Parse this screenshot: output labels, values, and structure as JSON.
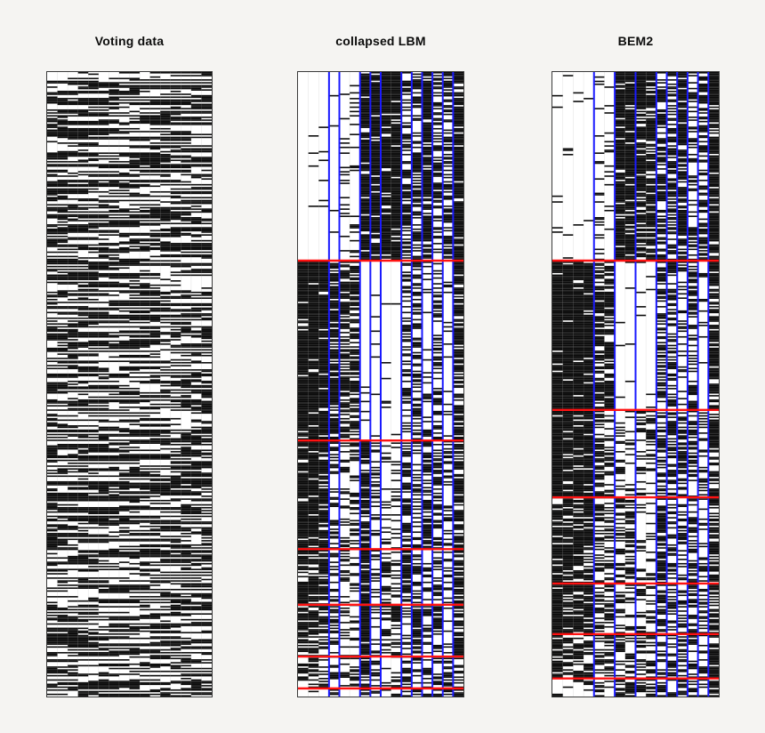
{
  "figure": {
    "background_color": "#f5f4f2",
    "matrix_background": "#ffffff",
    "cell_on_color": "#0a0a0a",
    "row_separator_color": "#ff1212",
    "column_separator_color": "#1a1aff",
    "border_color": "#3a3a3a"
  },
  "chart_data": [
    {
      "id": "voting",
      "type": "heatmap",
      "title": "Voting data",
      "rows": 435,
      "cols": 16,
      "encoding": "binary black/white cells",
      "black_probability": 0.54,
      "run_stay_probability": 0.62,
      "seed": 20240817,
      "grid": "faint column gridlines",
      "legend_position": "none"
    },
    {
      "id": "clbm",
      "type": "block-heatmap",
      "title": "collapsed LBM",
      "rows": 435,
      "cols": 16,
      "encoding": "binary cells sorted into row x column clusters",
      "col_cluster_boundaries": [
        3,
        4,
        6,
        7,
        8,
        10,
        11,
        12,
        13,
        14,
        15
      ],
      "row_cluster_boundaries_frac": [
        0.302,
        0.59,
        0.764,
        0.853,
        0.936,
        0.987
      ],
      "row_line_color": "#ff1212",
      "col_line_color": "#1a1aff",
      "block_black_probability": [
        [
          0.03,
          0.04,
          0.1,
          0.9,
          0.85,
          0.88,
          0.6,
          0.55,
          0.78,
          0.45,
          0.6,
          0.9
        ],
        [
          0.93,
          0.78,
          0.68,
          0.06,
          0.04,
          0.03,
          0.5,
          0.5,
          0.22,
          0.48,
          0.1,
          0.72
        ],
        [
          0.9,
          0.5,
          0.35,
          0.8,
          0.3,
          0.28,
          0.6,
          0.45,
          0.6,
          0.5,
          0.3,
          0.7
        ],
        [
          0.78,
          0.45,
          0.3,
          0.85,
          0.25,
          0.35,
          0.7,
          0.45,
          0.3,
          0.55,
          0.25,
          0.75
        ],
        [
          0.72,
          0.5,
          0.35,
          0.8,
          0.25,
          0.55,
          0.3,
          0.7,
          0.35,
          0.55,
          0.2,
          0.75
        ],
        [
          0.6,
          0.5,
          0.45,
          0.7,
          0.4,
          0.35,
          0.55,
          0.45,
          0.5,
          0.45,
          0.4,
          0.65
        ],
        [
          0.1,
          0.3,
          0.4,
          0.8,
          0.5,
          0.3,
          0.6,
          0.5,
          0.4,
          0.5,
          0.4,
          0.7
        ]
      ],
      "seed": 91451,
      "legend_position": "none"
    },
    {
      "id": "bem2",
      "type": "block-heatmap",
      "title": "BEM2",
      "rows": 435,
      "cols": 16,
      "encoding": "binary cells sorted into row x column clusters",
      "col_cluster_boundaries": [
        4,
        6,
        8,
        10,
        11,
        12,
        13,
        14,
        15
      ],
      "row_cluster_boundaries_frac": [
        0.302,
        0.541,
        0.681,
        0.819,
        0.9,
        0.971
      ],
      "row_line_color": "#ff1212",
      "col_line_color": "#1a1aff",
      "block_black_probability": [
        [
          0.03,
          0.12,
          0.88,
          0.8,
          0.6,
          0.55,
          0.82,
          0.45,
          0.55,
          0.88
        ],
        [
          0.93,
          0.72,
          0.05,
          0.04,
          0.55,
          0.5,
          0.25,
          0.5,
          0.12,
          0.75
        ],
        [
          0.9,
          0.45,
          0.3,
          0.3,
          0.6,
          0.45,
          0.55,
          0.5,
          0.3,
          0.7
        ],
        [
          0.75,
          0.4,
          0.45,
          0.3,
          0.65,
          0.45,
          0.35,
          0.55,
          0.3,
          0.72
        ],
        [
          0.85,
          0.5,
          0.35,
          0.35,
          0.55,
          0.5,
          0.45,
          0.5,
          0.35,
          0.7
        ],
        [
          0.65,
          0.5,
          0.4,
          0.4,
          0.55,
          0.45,
          0.5,
          0.45,
          0.4,
          0.68
        ],
        [
          0.15,
          0.35,
          0.75,
          0.45,
          0.6,
          0.5,
          0.4,
          0.5,
          0.4,
          0.7
        ]
      ],
      "seed": 77313,
      "legend_position": "none"
    }
  ]
}
